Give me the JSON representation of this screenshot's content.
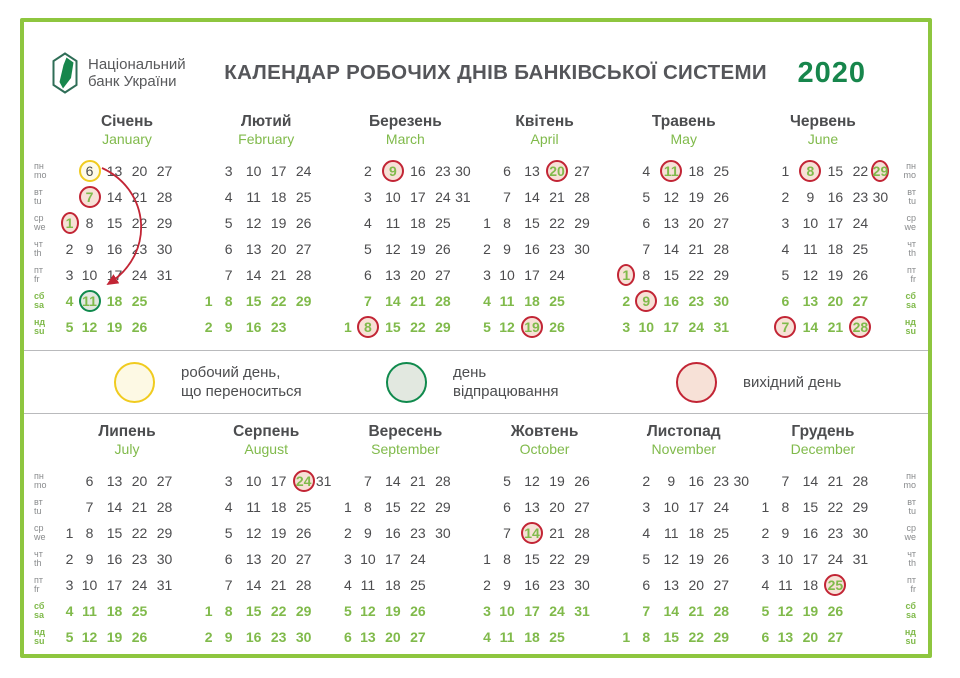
{
  "header": {
    "logo_line1": "Національний",
    "logo_line2": "банк України",
    "title": "КАЛЕНДАР РОБОЧИХ ДНІВ БАНКІВСЬКОЇ СИСТЕМИ",
    "year": "2020"
  },
  "weekday_labels": [
    {
      "uk": "пн",
      "en": "mo",
      "weekend": false
    },
    {
      "uk": "вт",
      "en": "tu",
      "weekend": false
    },
    {
      "uk": "ср",
      "en": "we",
      "weekend": false
    },
    {
      "uk": "чт",
      "en": "th",
      "weekend": false
    },
    {
      "uk": "пт",
      "en": "fr",
      "weekend": false
    },
    {
      "uk": "сб",
      "en": "sa",
      "weekend": true
    },
    {
      "uk": "нд",
      "en": "su",
      "weekend": true
    }
  ],
  "legend": {
    "items": [
      {
        "type": "moved-workday",
        "line1": "робочий день,",
        "line2": "що переноситься",
        "border": "#f0cb1f",
        "fill": "#fdf9e4"
      },
      {
        "type": "workoff-day",
        "line1": "день",
        "line2": "відпрацювання",
        "border": "#108a4d",
        "fill": "#e2e8e0"
      },
      {
        "type": "day-off",
        "line1": "вихідний день",
        "line2": "",
        "border": "#c22535",
        "fill": "#f7e1d7"
      }
    ]
  },
  "colors": {
    "frame": "#8ec63f",
    "year": "#17864c",
    "weekend": "#80ba4b",
    "weekday_text": "#4c4c4e",
    "dayoff_ring": "#c22535",
    "workoff_ring": "#108a4d",
    "moved_ring": "#f0cb1f",
    "arrow": "#c22535"
  },
  "arrow": {
    "month": "Січень",
    "from_day": "6",
    "to_day": "11"
  },
  "months": [
    {
      "uk": "Січень",
      "en": "January",
      "grid": [
        [
          "",
          "6",
          "13",
          "20",
          "27",
          ""
        ],
        [
          "",
          "7",
          "14",
          "21",
          "28",
          ""
        ],
        [
          "1",
          "8",
          "15",
          "22",
          "29",
          ""
        ],
        [
          "2",
          "9",
          "16",
          "23",
          "30",
          ""
        ],
        [
          "3",
          "10",
          "17",
          "24",
          "31",
          ""
        ],
        [
          "4",
          "11",
          "18",
          "25",
          "",
          ""
        ],
        [
          "5",
          "12",
          "19",
          "26",
          "",
          ""
        ]
      ],
      "marks": {
        "6": "moved",
        "7": "dayoff",
        "1": "dayoff",
        "11": "workoff"
      }
    },
    {
      "uk": "Лютий",
      "en": "February",
      "grid": [
        [
          "",
          "3",
          "10",
          "17",
          "24",
          ""
        ],
        [
          "",
          "4",
          "11",
          "18",
          "25",
          ""
        ],
        [
          "",
          "5",
          "12",
          "19",
          "26",
          ""
        ],
        [
          "",
          "6",
          "13",
          "20",
          "27",
          ""
        ],
        [
          "",
          "7",
          "14",
          "21",
          "28",
          ""
        ],
        [
          "1",
          "8",
          "15",
          "22",
          "29",
          ""
        ],
        [
          "2",
          "9",
          "16",
          "23",
          "",
          ""
        ]
      ],
      "marks": {}
    },
    {
      "uk": "Березень",
      "en": "March",
      "grid": [
        [
          "",
          "2",
          "9",
          "16",
          "23",
          "30"
        ],
        [
          "",
          "3",
          "10",
          "17",
          "24",
          "31"
        ],
        [
          "",
          "4",
          "11",
          "18",
          "25",
          ""
        ],
        [
          "",
          "5",
          "12",
          "19",
          "26",
          ""
        ],
        [
          "",
          "6",
          "13",
          "20",
          "27",
          ""
        ],
        [
          "",
          "7",
          "14",
          "21",
          "28",
          ""
        ],
        [
          "1",
          "8",
          "15",
          "22",
          "29",
          ""
        ]
      ],
      "marks": {
        "9": "dayoff",
        "8": "dayoff"
      }
    },
    {
      "uk": "Квітень",
      "en": "April",
      "grid": [
        [
          "",
          "6",
          "13",
          "20",
          "27",
          ""
        ],
        [
          "",
          "7",
          "14",
          "21",
          "28",
          ""
        ],
        [
          "1",
          "8",
          "15",
          "22",
          "29",
          ""
        ],
        [
          "2",
          "9",
          "16",
          "23",
          "30",
          ""
        ],
        [
          "3",
          "10",
          "17",
          "24",
          "",
          ""
        ],
        [
          "4",
          "11",
          "18",
          "25",
          "",
          ""
        ],
        [
          "5",
          "12",
          "19",
          "26",
          "",
          ""
        ]
      ],
      "marks": {
        "20": "dayoff",
        "19": "dayoff"
      }
    },
    {
      "uk": "Травень",
      "en": "May",
      "grid": [
        [
          "",
          "4",
          "11",
          "18",
          "25",
          ""
        ],
        [
          "",
          "5",
          "12",
          "19",
          "26",
          ""
        ],
        [
          "",
          "6",
          "13",
          "20",
          "27",
          ""
        ],
        [
          "",
          "7",
          "14",
          "21",
          "28",
          ""
        ],
        [
          "1",
          "8",
          "15",
          "22",
          "29",
          ""
        ],
        [
          "2",
          "9",
          "16",
          "23",
          "30",
          ""
        ],
        [
          "3",
          "10",
          "17",
          "24",
          "31",
          ""
        ]
      ],
      "marks": {
        "11": "dayoff",
        "1": "dayoff",
        "9": "dayoff"
      }
    },
    {
      "uk": "Червень",
      "en": "June",
      "grid": [
        [
          "",
          "1",
          "8",
          "15",
          "22",
          "29"
        ],
        [
          "",
          "2",
          "9",
          "16",
          "23",
          "30"
        ],
        [
          "",
          "3",
          "10",
          "17",
          "24",
          ""
        ],
        [
          "",
          "4",
          "11",
          "18",
          "25",
          ""
        ],
        [
          "",
          "5",
          "12",
          "19",
          "26",
          ""
        ],
        [
          "",
          "6",
          "13",
          "20",
          "27",
          ""
        ],
        [
          "",
          "7",
          "14",
          "21",
          "28",
          ""
        ]
      ],
      "marks": {
        "8": "dayoff",
        "29": "dayoff",
        "7": "dayoff",
        "28": "dayoff"
      }
    },
    {
      "uk": "Липень",
      "en": "July",
      "grid": [
        [
          "",
          "6",
          "13",
          "20",
          "27",
          ""
        ],
        [
          "",
          "7",
          "14",
          "21",
          "28",
          ""
        ],
        [
          "1",
          "8",
          "15",
          "22",
          "29",
          ""
        ],
        [
          "2",
          "9",
          "16",
          "23",
          "30",
          ""
        ],
        [
          "3",
          "10",
          "17",
          "24",
          "31",
          ""
        ],
        [
          "4",
          "11",
          "18",
          "25",
          "",
          ""
        ],
        [
          "5",
          "12",
          "19",
          "26",
          "",
          ""
        ]
      ],
      "marks": {}
    },
    {
      "uk": "Серпень",
      "en": "August",
      "grid": [
        [
          "",
          "3",
          "10",
          "17",
          "24",
          "31"
        ],
        [
          "",
          "4",
          "11",
          "18",
          "25",
          ""
        ],
        [
          "",
          "5",
          "12",
          "19",
          "26",
          ""
        ],
        [
          "",
          "6",
          "13",
          "20",
          "27",
          ""
        ],
        [
          "",
          "7",
          "14",
          "21",
          "28",
          ""
        ],
        [
          "1",
          "8",
          "15",
          "22",
          "29",
          ""
        ],
        [
          "2",
          "9",
          "16",
          "23",
          "30",
          ""
        ]
      ],
      "marks": {
        "24": "dayoff"
      }
    },
    {
      "uk": "Вересень",
      "en": "September",
      "grid": [
        [
          "",
          "7",
          "14",
          "21",
          "28",
          ""
        ],
        [
          "1",
          "8",
          "15",
          "22",
          "29",
          ""
        ],
        [
          "2",
          "9",
          "16",
          "23",
          "30",
          ""
        ],
        [
          "3",
          "10",
          "17",
          "24",
          "",
          ""
        ],
        [
          "4",
          "11",
          "18",
          "25",
          "",
          ""
        ],
        [
          "5",
          "12",
          "19",
          "26",
          "",
          ""
        ],
        [
          "6",
          "13",
          "20",
          "27",
          "",
          ""
        ]
      ],
      "marks": {}
    },
    {
      "uk": "Жовтень",
      "en": "October",
      "grid": [
        [
          "",
          "5",
          "12",
          "19",
          "26",
          ""
        ],
        [
          "",
          "6",
          "13",
          "20",
          "27",
          ""
        ],
        [
          "",
          "7",
          "14",
          "21",
          "28",
          ""
        ],
        [
          "1",
          "8",
          "15",
          "22",
          "29",
          ""
        ],
        [
          "2",
          "9",
          "16",
          "23",
          "30",
          ""
        ],
        [
          "3",
          "10",
          "17",
          "24",
          "31",
          ""
        ],
        [
          "4",
          "11",
          "18",
          "25",
          "",
          ""
        ]
      ],
      "marks": {
        "14": "dayoff"
      }
    },
    {
      "uk": "Листопад",
      "en": "November",
      "grid": [
        [
          "",
          "2",
          "9",
          "16",
          "23",
          "30"
        ],
        [
          "",
          "3",
          "10",
          "17",
          "24",
          ""
        ],
        [
          "",
          "4",
          "11",
          "18",
          "25",
          ""
        ],
        [
          "",
          "5",
          "12",
          "19",
          "26",
          ""
        ],
        [
          "",
          "6",
          "13",
          "20",
          "27",
          ""
        ],
        [
          "",
          "7",
          "14",
          "21",
          "28",
          ""
        ],
        [
          "1",
          "8",
          "15",
          "22",
          "29",
          ""
        ]
      ],
      "marks": {}
    },
    {
      "uk": "Грудень",
      "en": "December",
      "grid": [
        [
          "",
          "7",
          "14",
          "21",
          "28",
          ""
        ],
        [
          "1",
          "8",
          "15",
          "22",
          "29",
          ""
        ],
        [
          "2",
          "9",
          "16",
          "23",
          "30",
          ""
        ],
        [
          "3",
          "10",
          "17",
          "24",
          "31",
          ""
        ],
        [
          "4",
          "11",
          "18",
          "25",
          "",
          ""
        ],
        [
          "5",
          "12",
          "19",
          "26",
          "",
          ""
        ],
        [
          "6",
          "13",
          "20",
          "27",
          "",
          ""
        ]
      ],
      "marks": {
        "25": "dayoff"
      }
    }
  ]
}
